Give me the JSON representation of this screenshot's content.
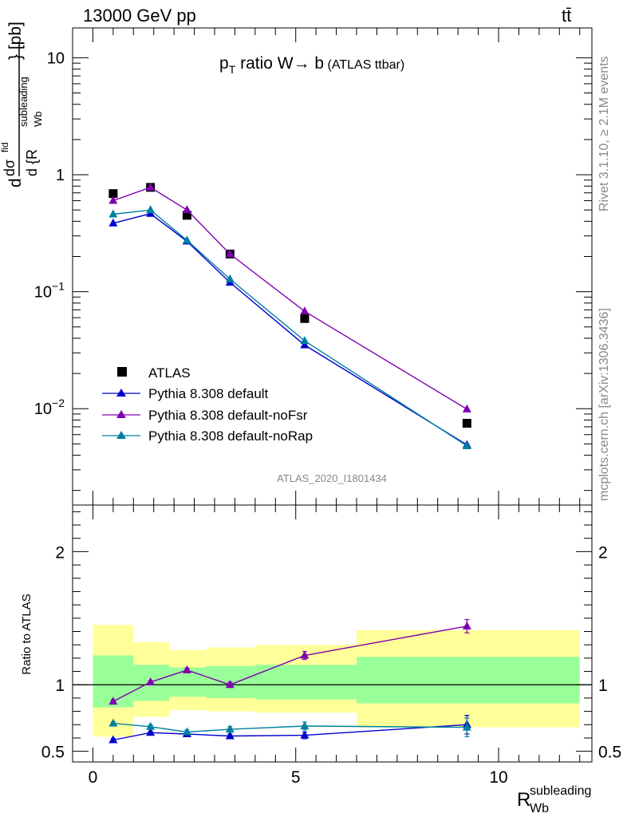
{
  "header": {
    "energy_label": "13000 GeV pp",
    "process_label": "tt̄"
  },
  "side_notes": {
    "rivet": "Rivet 3.1.10, ≥ 2.1M events",
    "mcplots": "mcplots.cern.ch [arXiv:1306.3436]"
  },
  "analysis_id": "ATLAS_2020_I1801434",
  "chart_data": [
    {
      "type": "scatter",
      "title": {
        "p": "p",
        "sub": "T",
        "rest": " ratio W",
        "arrow": "→",
        "b": " b",
        "small": " (ATLAS ttbar)"
      },
      "ylabel": {
        "d": "d",
        "sigma": "dσ",
        "sigma_sup": "fid",
        "den": "d {R",
        "den_sup": "subleading",
        "den_sub": "Wb",
        "close": "} [pb]"
      },
      "yscale": "log",
      "ylim": [
        0.0015,
        18
      ],
      "xlim": [
        -0.5,
        12.3
      ],
      "y_ticks": [
        {
          "v": 10,
          "base": "10",
          "exp": ""
        },
        {
          "v": 1,
          "base": "1",
          "exp": ""
        },
        {
          "v": 0.1,
          "base": "10",
          "exp": "−1"
        },
        {
          "v": 0.01,
          "base": "10",
          "exp": "−2"
        }
      ],
      "legend_position": "bottom-left",
      "series": [
        {
          "name": "ATLAS",
          "color": "#000000",
          "marker": "square",
          "x": [
            0.5,
            1.42,
            2.32,
            3.38,
            5.22,
            9.22
          ],
          "y": [
            0.69,
            0.78,
            0.45,
            0.21,
            0.059,
            0.0075
          ]
        },
        {
          "name": "Pythia 8.308 default",
          "color": "#0000cc",
          "marker": "triangle",
          "x": [
            0.5,
            1.42,
            2.32,
            3.38,
            5.22,
            9.22
          ],
          "y": [
            0.385,
            0.465,
            0.27,
            0.12,
            0.035,
            0.0049
          ]
        },
        {
          "name": "Pythia 8.308 default-noFsr",
          "color": "#8000b0",
          "marker": "triangle",
          "x": [
            0.5,
            1.42,
            2.32,
            3.38,
            5.22,
            9.22
          ],
          "y": [
            0.6,
            0.78,
            0.5,
            0.21,
            0.068,
            0.0099
          ]
        },
        {
          "name": "Pythia 8.308 default-noRap",
          "color": "#0080a0",
          "marker": "triangle",
          "x": [
            0.5,
            1.42,
            2.32,
            3.38,
            5.22,
            9.22
          ],
          "y": [
            0.46,
            0.5,
            0.275,
            0.128,
            0.038,
            0.0048
          ]
        }
      ]
    },
    {
      "type": "scatter",
      "ylabel": "Ratio to ATLAS",
      "ylim": [
        0.42,
        2.35
      ],
      "y_ticks": [
        0.5,
        1,
        2
      ],
      "x_ticks": [
        0,
        5,
        10
      ],
      "xlabel": {
        "main": "R",
        "sup": "subleading",
        "sub": "Wb"
      },
      "reference_line": 1,
      "uncertainty_bands": [
        {
          "x": [
            0,
            1
          ],
          "inner": [
            0.83,
            1.22
          ],
          "outer": [
            0.61,
            1.45
          ]
        },
        {
          "x": [
            1,
            1.88
          ],
          "inner": [
            0.88,
            1.15
          ],
          "outer": [
            0.76,
            1.32
          ]
        },
        {
          "x": [
            1.88,
            2.8
          ],
          "inner": [
            0.91,
            1.13
          ],
          "outer": [
            0.81,
            1.26
          ]
        },
        {
          "x": [
            2.8,
            4.0
          ],
          "inner": [
            0.9,
            1.14
          ],
          "outer": [
            0.8,
            1.28
          ]
        },
        {
          "x": [
            4.0,
            6.5
          ],
          "inner": [
            0.89,
            1.15
          ],
          "outer": [
            0.79,
            1.3
          ]
        },
        {
          "x": [
            6.5,
            12.0
          ],
          "inner": [
            0.86,
            1.21
          ],
          "outer": [
            0.68,
            1.41
          ]
        }
      ],
      "series": [
        {
          "name": "Pythia 8.308 default",
          "color": "#0000cc",
          "x": [
            0.5,
            1.42,
            2.32,
            3.38,
            5.22,
            9.22
          ],
          "y": [
            0.585,
            0.64,
            0.63,
            0.615,
            0.62,
            0.7
          ],
          "err": [
            0.01,
            0.01,
            0.012,
            0.015,
            0.025,
            0.07
          ]
        },
        {
          "name": "Pythia 8.308 default-noFsr",
          "color": "#8000b0",
          "x": [
            0.5,
            1.42,
            2.32,
            3.38,
            5.22,
            9.22
          ],
          "y": [
            0.875,
            1.02,
            1.11,
            1.0,
            1.22,
            1.44
          ],
          "err": [
            0.01,
            0.01,
            0.015,
            0.02,
            0.03,
            0.05
          ]
        },
        {
          "name": "Pythia 8.308 default-noRap",
          "color": "#0080a0",
          "x": [
            0.5,
            1.42,
            2.32,
            3.38,
            5.22,
            9.22
          ],
          "y": [
            0.71,
            0.685,
            0.645,
            0.665,
            0.69,
            0.68
          ],
          "err": [
            0.01,
            0.012,
            0.015,
            0.02,
            0.03,
            0.07
          ]
        }
      ]
    }
  ]
}
